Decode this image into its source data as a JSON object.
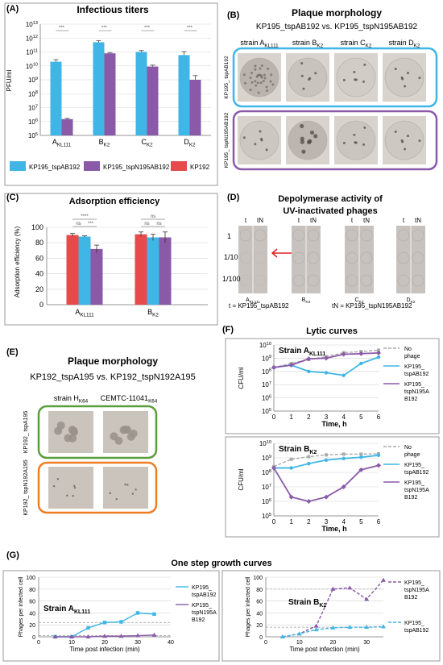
{
  "colors": {
    "blue": "#3fb6e6",
    "purple": "#8a5aa8",
    "red": "#e64a4a",
    "grey": "#aaaaaa",
    "green": "#5a9e3a",
    "orange": "#ef7d22"
  },
  "panelA": {
    "label": "(A)",
    "title": "Infectious titers",
    "ylabel": "PFU/ml",
    "yticks": [
      "10",
      "10",
      "10",
      "10",
      "10",
      "10",
      "10",
      "10",
      "10"
    ],
    "yexp": [
      "5",
      "6",
      "7",
      "8",
      "9",
      "10",
      "11",
      "12",
      "13"
    ],
    "categories": [
      "A",
      "B",
      "C",
      "D"
    ],
    "cat_subs": [
      "KL111",
      "K2",
      "K2",
      "K2"
    ],
    "sig": [
      "***",
      "***",
      "***",
      "***"
    ],
    "legend": [
      "KP195_tspAB192",
      "KP195_tspN195AB192",
      "KP192"
    ]
  },
  "panelB": {
    "label": "(B)",
    "title": "Plaque morphology",
    "subtitle": "KP195_tspAB192 vs. KP195_tspN195AB192",
    "strains": [
      "strain A",
      "strain B",
      "strain C",
      "strain D"
    ],
    "strain_subs": [
      "KL111",
      "K2",
      "K2",
      "K2"
    ],
    "row_labels": [
      "KP195_ tspAB192",
      "KP195_ tspN195AB192"
    ]
  },
  "panelC": {
    "label": "(C)",
    "title": "Adsorption efficiency",
    "ylabel": "Adsorption efficiency (%)",
    "yticks": [
      "0",
      "20",
      "40",
      "60",
      "80",
      "100"
    ],
    "categories": [
      "A",
      "B"
    ],
    "cat_subs": [
      "KL111",
      "K2"
    ],
    "sig_top": [
      "****",
      "ns"
    ],
    "sig_mid": [
      "ns",
      "***",
      "ns",
      "ns"
    ]
  },
  "panelD": {
    "label": "(D)",
    "title": "Depolymerase activity of",
    "subtitle": "UV-inactivated phages",
    "col_labels": [
      "t",
      "tN"
    ],
    "dilutions": [
      "1",
      "1/10",
      "1/100"
    ],
    "strains": [
      "A",
      "B",
      "C",
      "D"
    ],
    "strain_subs": [
      "KL111",
      "K2",
      "K2",
      "K2"
    ],
    "note_t": "t = KP195_tspAB192",
    "note_tN": "tN = KP195_tspN195AB192"
  },
  "panelE": {
    "label": "(E)",
    "title": "Plaque morphology",
    "subtitle": "KP192_tspA195 vs. KP192_tspN192A195",
    "strains": [
      "strain H",
      "CEMTC-11041"
    ],
    "strain_subs": [
      "K64",
      "K64"
    ],
    "row_labels": [
      "KP192_ tspA195",
      "KP192_ tspN192A195"
    ]
  },
  "panelF": {
    "label": "(F)",
    "title": "Lytic curves",
    "ylabel": "CFU/ml",
    "xlabel": "Time, h",
    "plots": [
      {
        "strain": "Strain A",
        "sub": "KL111",
        "legend": [
          "No phage",
          "KP195_ tspAB192",
          "KP195_ tspN195A B192"
        ]
      },
      {
        "strain": "Strain B",
        "sub": "K2",
        "legend": [
          "No phage",
          "KP195_ tspAB192",
          "KP195_ tspN195A B192"
        ]
      }
    ],
    "yticks": [
      "10",
      "10",
      "10",
      "10",
      "10",
      "10"
    ],
    "yexp": [
      "5",
      "6",
      "7",
      "8",
      "9",
      "10"
    ],
    "xticks": [
      "0",
      "1",
      "2",
      "3",
      "4",
      "5",
      "6"
    ]
  },
  "panelG": {
    "label": "(G)",
    "title": "One step growth curves",
    "ylabel": "Phages per infected cell",
    "xlabel": "Time post infection (min)",
    "plots": [
      {
        "strain": "Strain A",
        "sub": "KL111",
        "legend": [
          "KP195_ tspAB192",
          "KP195_ tspN195A B192"
        ],
        "yticks": [
          "0",
          "20",
          "40",
          "60",
          "80",
          "100"
        ],
        "xticks": [
          "0",
          "10",
          "20",
          "30",
          "40"
        ]
      },
      {
        "strain": "Strain B",
        "sub": "K2",
        "legend": [
          "KP195_ tspN195A B192",
          "KP195_ tspAB192"
        ],
        "yticks": [
          "0",
          "20",
          "40",
          "60",
          "80",
          "100"
        ],
        "xticks": [
          "0",
          "10",
          "20",
          "30"
        ]
      }
    ]
  },
  "chart_data": [
    {
      "type": "bar",
      "title": "Infectious titers",
      "ylabel": "PFU/ml",
      "yscale": "log",
      "ylim": [
        100000,
        10000000000000
      ],
      "categories": [
        "A KL111",
        "B K2",
        "C K2",
        "D K2"
      ],
      "series": [
        {
          "name": "KP195_tspAB192",
          "values": [
            20000000000,
            500000000000,
            100000000000,
            60000000000
          ]
        },
        {
          "name": "KP195_tspN195AB192",
          "values": [
            1500000,
            80000000000,
            9000000000,
            1000000000
          ]
        }
      ]
    },
    {
      "type": "bar",
      "title": "Adsorption efficiency",
      "ylabel": "Adsorption efficiency (%)",
      "ylim": [
        0,
        100
      ],
      "categories": [
        "A KL111",
        "B K2"
      ],
      "series": [
        {
          "name": "KP192",
          "values": [
            90,
            91
          ]
        },
        {
          "name": "KP195_tspAB192",
          "values": [
            88,
            87
          ]
        },
        {
          "name": "KP195_tspN195AB192",
          "values": [
            72,
            87
          ]
        }
      ]
    },
    {
      "type": "line",
      "title": "Strain A KL111",
      "xlabel": "Time, h",
      "ylabel": "CFU/ml",
      "yscale": "log",
      "ylim": [
        100000,
        10000000000
      ],
      "x": [
        0,
        1,
        2,
        3,
        4,
        5,
        6
      ],
      "series": [
        {
          "name": "No phage",
          "values": [
            200000000,
            400000000,
            800000000,
            1300000000,
            2600000000,
            3200000000,
            4000000000
          ]
        },
        {
          "name": "KP195_ tspAB192",
          "values": [
            200000000,
            300000000,
            100000000,
            80000000,
            50000000,
            400000000,
            1200000000
          ]
        },
        {
          "name": "KP195_ tspN195A B192",
          "values": [
            200000000,
            300000000,
            900000000,
            1000000000,
            2000000000,
            2200000000,
            2500000000
          ]
        }
      ]
    },
    {
      "type": "line",
      "title": "Strain B K2",
      "xlabel": "Time, h",
      "ylabel": "CFU/ml",
      "yscale": "log",
      "ylim": [
        100000,
        10000000000
      ],
      "x": [
        0,
        1,
        2,
        3,
        4,
        5,
        6
      ],
      "series": [
        {
          "name": "No phage",
          "values": [
            250000000,
            800000000,
            1200000000,
            1600000000,
            1800000000,
            1800000000,
            1900000000
          ]
        },
        {
          "name": "KP195_ tspAB192",
          "values": [
            200000000,
            200000000,
            400000000,
            700000000,
            900000000,
            1100000000,
            1500000000
          ]
        },
        {
          "name": "KP195_ tspN195A B192",
          "values": [
            200000000,
            2000000,
            1000000,
            2000000,
            10000000,
            150000000,
            300000000
          ]
        }
      ]
    },
    {
      "type": "line",
      "title": "Strain A KL111",
      "xlabel": "Time post infection (min)",
      "ylabel": "Phages per infected cell",
      "ylim": [
        0,
        100
      ],
      "x": [
        5,
        10,
        15,
        20,
        25,
        30,
        35
      ],
      "series": [
        {
          "name": "KP195_ tspAB192",
          "values": [
            0,
            0,
            15,
            24,
            25,
            40,
            38
          ]
        },
        {
          "name": "KP195_ tspN195A B192",
          "values": [
            0,
            0,
            0,
            1,
            1,
            2,
            3
          ]
        }
      ]
    },
    {
      "type": "line",
      "title": "Strain B K2",
      "xlabel": "Time post infection (min)",
      "ylabel": "Phages per infected cell",
      "ylim": [
        0,
        100
      ],
      "x": [
        5,
        10,
        15,
        20,
        25,
        30,
        35
      ],
      "series": [
        {
          "name": "KP195_ tspN195A B192",
          "values": [
            0,
            5,
            18,
            80,
            82,
            63,
            95
          ]
        },
        {
          "name": "KP195_ tspAB192",
          "values": [
            0,
            5,
            12,
            15,
            16,
            16,
            17
          ]
        }
      ]
    }
  ]
}
